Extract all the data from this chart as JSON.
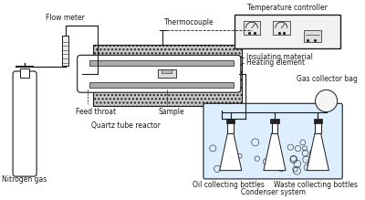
{
  "background_color": "#ffffff",
  "labels": {
    "flow_meter": "Flow meter",
    "thermocouple": "Thermocouple",
    "temperature_controller": "Temperature controller",
    "insulating_material": "Insulating material",
    "heating_element": "Heating element",
    "gas_collector_bag": "Gas collector bag",
    "feed_throat": "Feed throat",
    "sample": "Sample",
    "quartz_tube_reactor": "Quartz tube reactor",
    "oil_collecting_bottles": "Oil collecting bottles",
    "waste_collecting_bottles": "Waste collecting bottles",
    "condenser_system": "Condenser system",
    "nitrogen_gas": "Nitrogen gas"
  },
  "font_size": 6.0,
  "line_color": "#1a1a1a"
}
